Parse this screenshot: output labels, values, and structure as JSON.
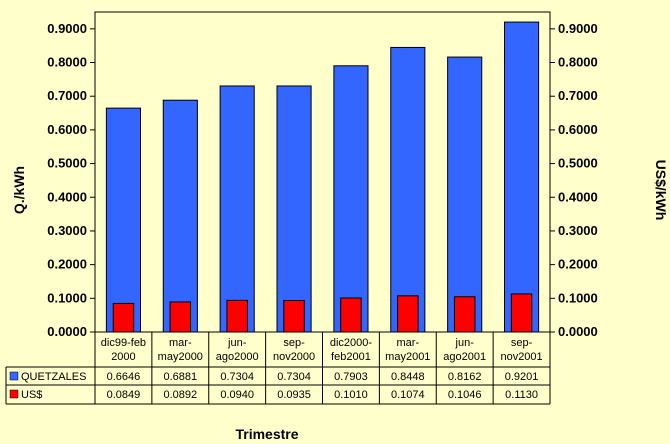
{
  "chart_data": {
    "type": "bar",
    "categories": [
      [
        "dic99-feb",
        "2000"
      ],
      [
        "mar-",
        "may2000"
      ],
      [
        "jun-",
        "ago2000"
      ],
      [
        "sep-",
        "nov2000"
      ],
      [
        "dic2000-",
        "feb2001"
      ],
      [
        "mar-",
        "may2001"
      ],
      [
        "jun-",
        "ago2001"
      ],
      [
        "sep-",
        "nov2001"
      ]
    ],
    "series": [
      {
        "name": "QUETZALES",
        "color": "#3366FF",
        "values": [
          0.6646,
          0.6881,
          0.7304,
          0.7304,
          0.7903,
          0.8448,
          0.8162,
          0.9201
        ],
        "labels": [
          "0.6646",
          "0.6881",
          "0.7304",
          "0.7304",
          "0.7903",
          "0.8448",
          "0.8162",
          "0.9201"
        ]
      },
      {
        "name": "US$",
        "color": "#FF0000",
        "values": [
          0.0849,
          0.0892,
          0.094,
          0.0935,
          0.101,
          0.1074,
          0.1046,
          0.113
        ],
        "labels": [
          "0.0849",
          "0.0892",
          "0.0940",
          "0.0935",
          "0.1010",
          "0.1074",
          "0.1046",
          "0.1130"
        ]
      }
    ],
    "ylim": [
      0,
      0.95
    ],
    "yticks": [
      "0.0000",
      "0.1000",
      "0.2000",
      "0.3000",
      "0.4000",
      "0.5000",
      "0.6000",
      "0.7000",
      "0.8000",
      "0.9000"
    ],
    "ylabel_left": "Q./kWh",
    "ylabel_right": "US$/kWh",
    "xlabel": "Trimestre",
    "data_table": true
  }
}
